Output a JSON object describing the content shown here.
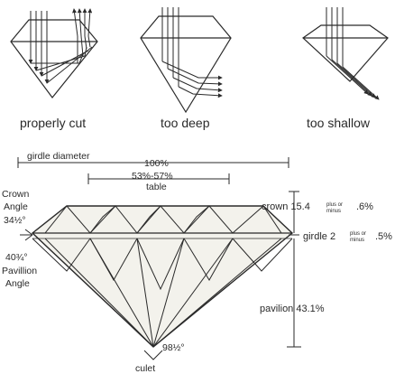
{
  "cuts": {
    "proper": "properly cut",
    "deep": "too deep",
    "shallow": "too shallow"
  },
  "labels": {
    "girdle_diameter": "girdle diameter",
    "girdle_pct": "100%",
    "table_range": "53%-57%",
    "table": "table",
    "crown_angle_1": "Crown",
    "crown_angle_2": "Angle",
    "crown_angle_val": "34½°",
    "pav_angle_val": "40¾°",
    "pav_angle_1": "Pavillion",
    "pav_angle_2": "Angle",
    "crown": "crown 15.4",
    "crown_tol": ".6%",
    "girdle": "girdle 2",
    "girdle_tol": ".5%",
    "pm_1": "plus or",
    "pm_2": "minus",
    "pavilion": "pavilion 43.1%",
    "culet_angle": "98½°",
    "culet": "culet"
  }
}
